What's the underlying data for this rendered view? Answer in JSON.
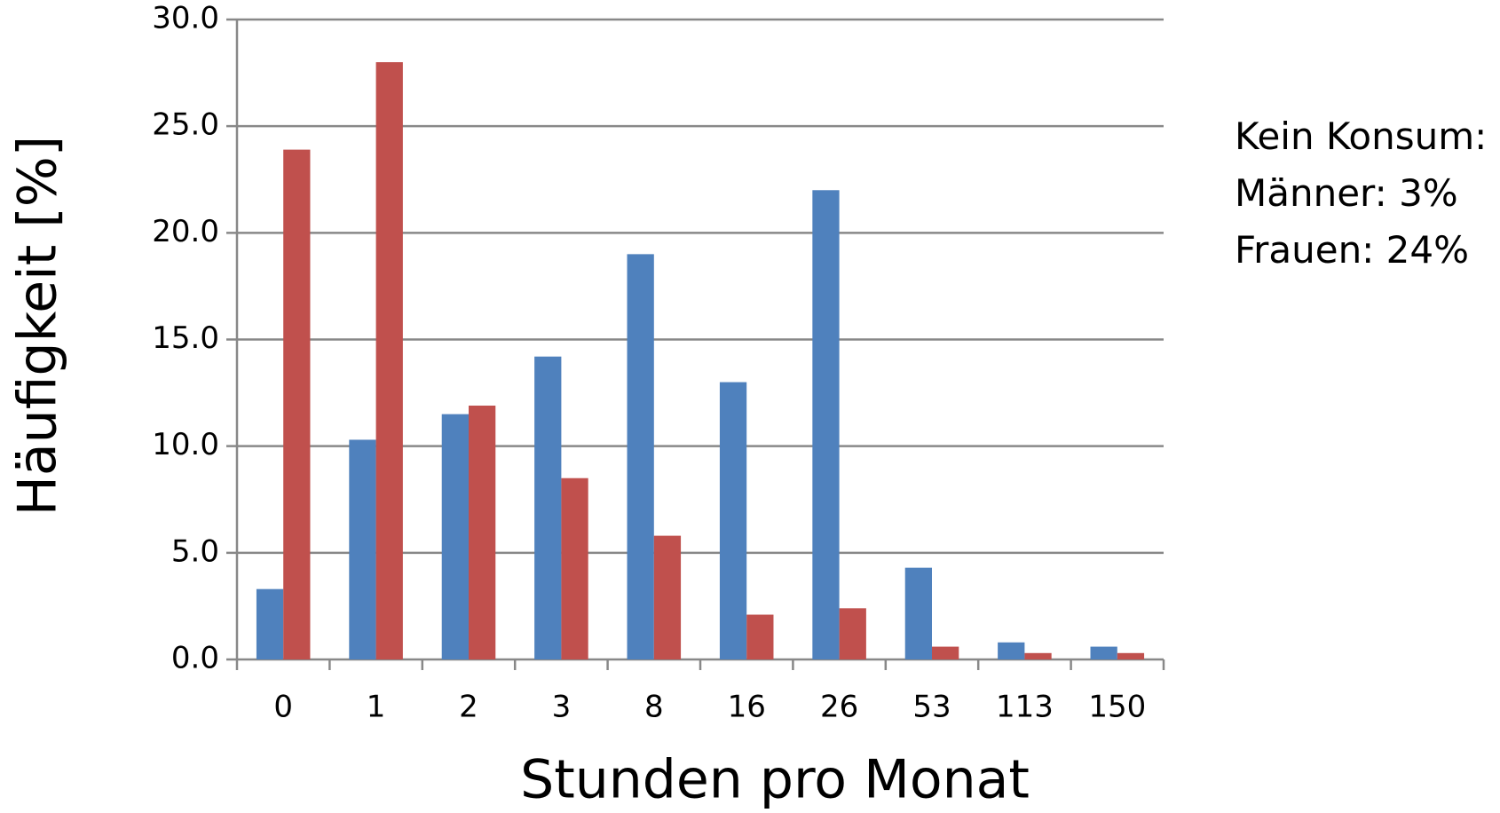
{
  "chart_data": {
    "type": "bar",
    "x_label": "Stunden pro Monat",
    "y_label": "Häufigkeit [%]",
    "categories": [
      "0",
      "1",
      "2",
      "3",
      "8",
      "16",
      "26",
      "53",
      "113",
      "150"
    ],
    "series": [
      {
        "color": "#4f81bd",
        "values": [
          3.3,
          10.3,
          11.5,
          14.2,
          19.0,
          13.0,
          22.0,
          4.3,
          0.8,
          0.6
        ]
      },
      {
        "color": "#c0504d",
        "values": [
          23.9,
          28.0,
          11.9,
          8.5,
          5.8,
          2.1,
          2.4,
          0.6,
          0.3,
          0.3
        ]
      }
    ],
    "ylim": [
      0,
      30
    ],
    "yticks": [
      {
        "value": 0,
        "label": "0.0"
      },
      {
        "value": 5,
        "label": "5.0"
      },
      {
        "value": 10,
        "label": "10.0"
      },
      {
        "value": 15,
        "label": "15.0"
      },
      {
        "value": 20,
        "label": "20.0"
      },
      {
        "value": 25,
        "label": "25.0"
      },
      {
        "value": 30,
        "label": "30.0"
      }
    ],
    "grid": true,
    "annotations": [
      "Kein Konsum:",
      "Männer: 3%",
      "Frauen: 24%"
    ]
  }
}
